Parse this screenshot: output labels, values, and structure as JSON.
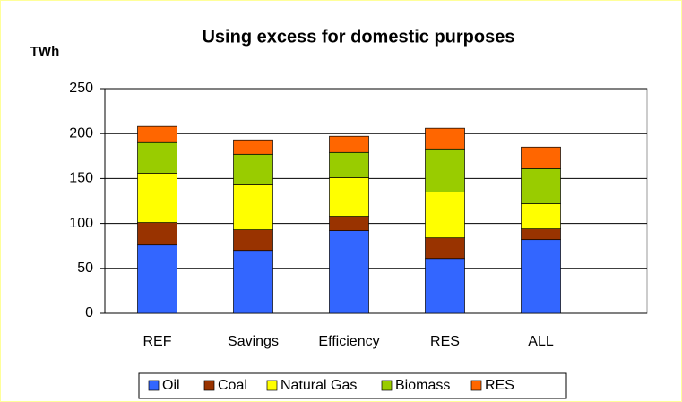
{
  "chart_data": {
    "type": "stacked_bar",
    "title": "Using excess for domestic purposes",
    "y_label": "TWh",
    "categories": [
      "REF",
      "Savings",
      "Efficiency",
      "RES",
      "ALL"
    ],
    "series": [
      {
        "name": "Oil",
        "color": "#3366ff",
        "values": [
          76,
          70,
          92,
          61,
          82
        ]
      },
      {
        "name": "Coal",
        "color": "#993300",
        "values": [
          25,
          23,
          16,
          23,
          12
        ]
      },
      {
        "name": "Natural Gas",
        "color": "#ffff00",
        "values": [
          55,
          50,
          43,
          51,
          28
        ]
      },
      {
        "name": "Biomass",
        "color": "#99cc00",
        "values": [
          34,
          34,
          28,
          48,
          39
        ]
      },
      {
        "name": "RES",
        "color": "#ff6600",
        "values": [
          18,
          16,
          18,
          23,
          24
        ]
      }
    ],
    "ylim": [
      0,
      250
    ],
    "yticks": [
      0,
      50,
      100,
      150,
      200,
      250
    ],
    "grid": true,
    "legend": "bottom"
  }
}
